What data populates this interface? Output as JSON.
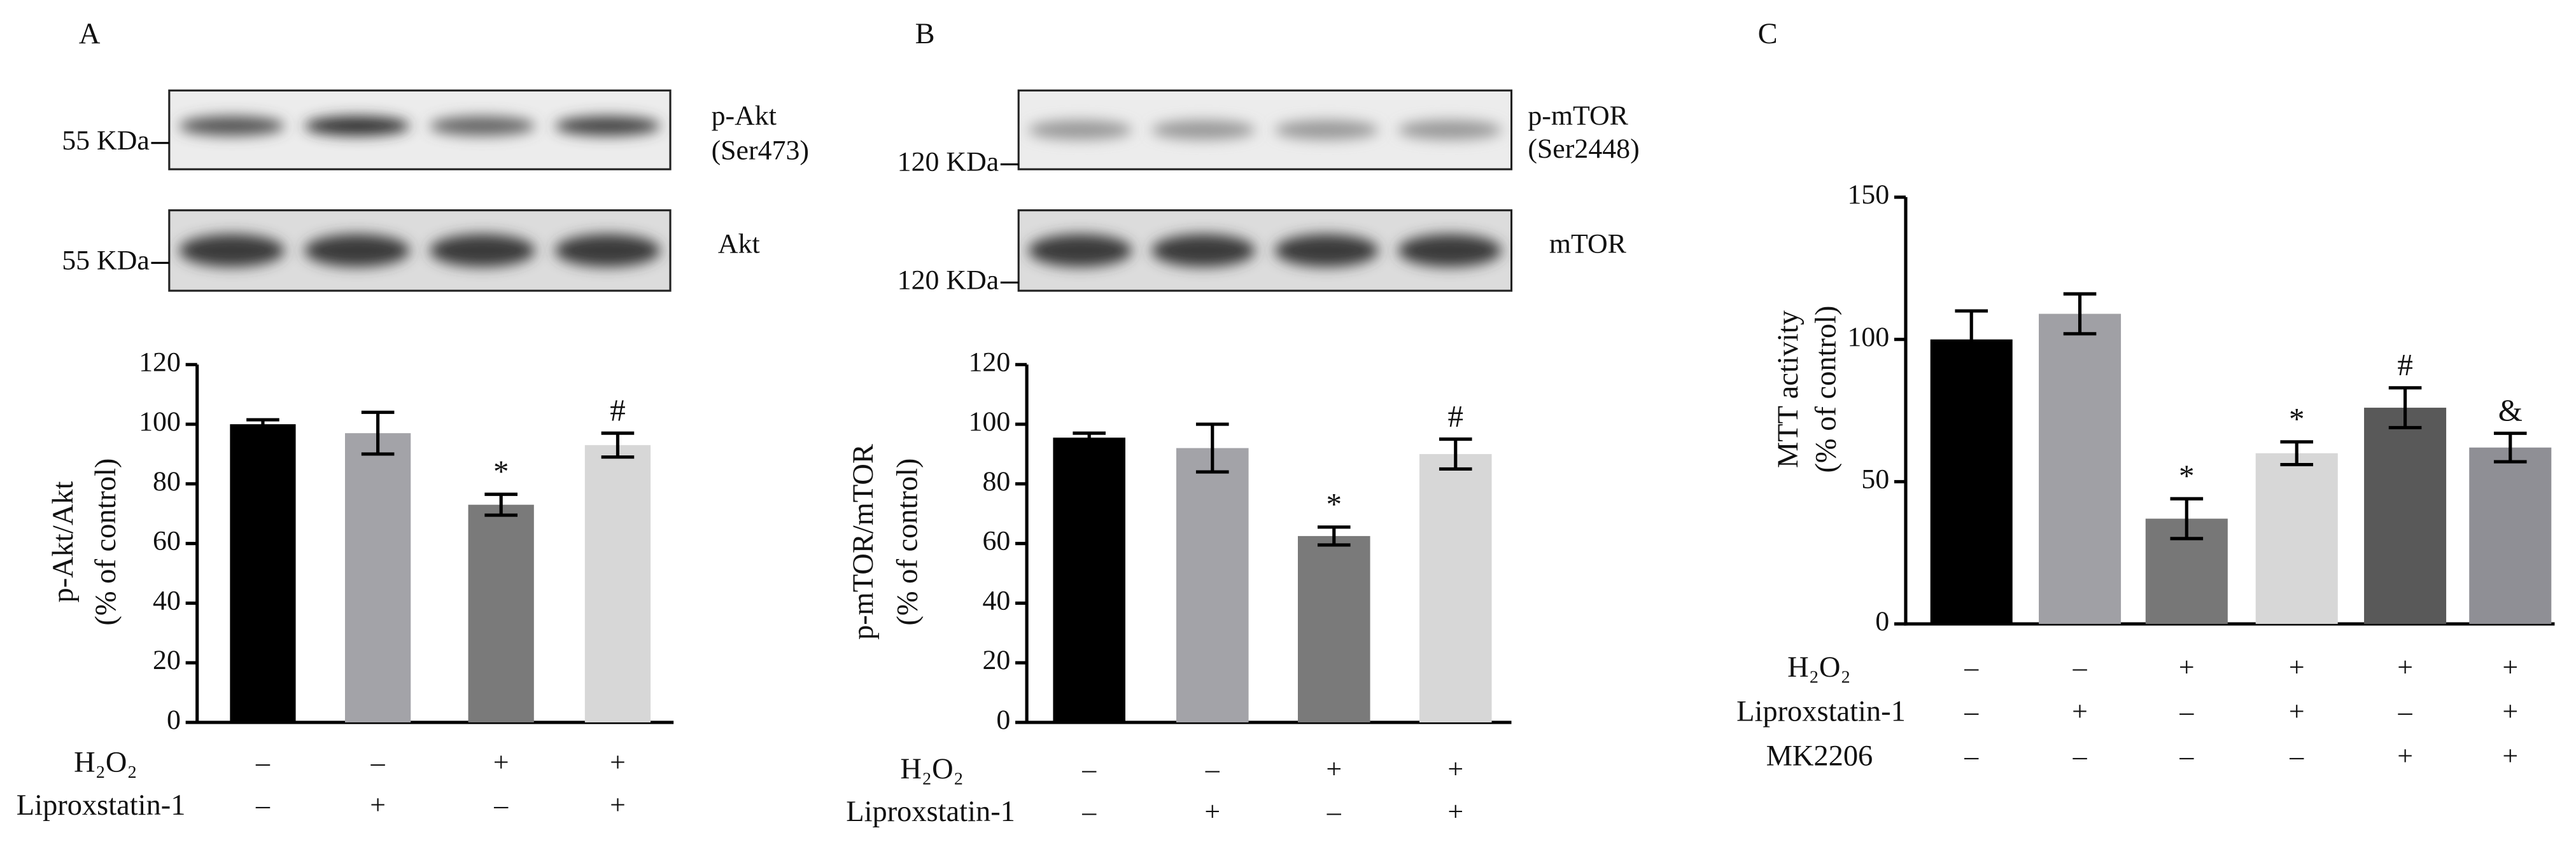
{
  "chart_data": [
    {
      "type": "bar",
      "panel_label": "A",
      "blots": [
        {
          "labels": [
            "p-Akt",
            "(Ser473)"
          ],
          "marker": "55 KDa"
        },
        {
          "labels": [
            "Akt"
          ],
          "marker": "55 KDa"
        }
      ],
      "y_label": [
        "p-Akt/Akt",
        "(% of control)"
      ],
      "values": [
        100,
        97,
        73,
        93
      ],
      "errors": [
        1.5,
        7,
        3.5,
        4
      ],
      "colors": [
        "#000000",
        "#a3a3a8",
        "#7a7a7a",
        "#d7d7d7"
      ],
      "annotations": [
        null,
        null,
        "*",
        "#"
      ],
      "ylim": [
        0,
        120
      ],
      "yticks": [
        0,
        20,
        40,
        60,
        80,
        100,
        120
      ],
      "treatments": [
        {
          "name": "H₂O₂",
          "signs": [
            "–",
            "–",
            "+",
            "+"
          ]
        },
        {
          "name": "Liproxstatin-1",
          "signs": [
            "–",
            "+",
            "–",
            "+"
          ]
        }
      ]
    },
    {
      "type": "bar",
      "panel_label": "B",
      "blots": [
        {
          "labels": [
            "p-mTOR",
            "(Ser2448)"
          ],
          "marker": "120 KDa"
        },
        {
          "labels": [
            "mTOR"
          ],
          "marker": "120 KDa"
        }
      ],
      "y_label": [
        "p-mTOR/mTOR",
        "(% of control)"
      ],
      "values": [
        95.5,
        92,
        62.5,
        90
      ],
      "errors": [
        1.5,
        8,
        3,
        5
      ],
      "colors": [
        "#000000",
        "#a3a3a8",
        "#7a7a7a",
        "#d7d7d7"
      ],
      "annotations": [
        null,
        null,
        "*",
        "#"
      ],
      "ylim": [
        0,
        120
      ],
      "yticks": [
        0,
        20,
        40,
        60,
        80,
        100,
        120
      ],
      "treatments": [
        {
          "name": "H₂O₂",
          "signs": [
            "–",
            "–",
            "+",
            "+"
          ]
        },
        {
          "name": "Liproxstatin-1",
          "signs": [
            "–",
            "+",
            "–",
            "+"
          ]
        }
      ]
    },
    {
      "type": "bar",
      "panel_label": "C",
      "y_label": [
        "MTT activity",
        "(% of control)"
      ],
      "values": [
        100,
        109,
        37,
        60,
        76,
        62
      ],
      "errors": [
        10,
        7,
        7,
        4,
        7,
        5
      ],
      "colors": [
        "#000000",
        "#a0a0a5",
        "#777777",
        "#d7d7d7",
        "#595959",
        "#8f8f95"
      ],
      "annotations": [
        null,
        null,
        "*",
        "*",
        "#",
        "&"
      ],
      "ylim": [
        0,
        150
      ],
      "yticks": [
        0,
        50,
        100,
        150
      ],
      "treatments": [
        {
          "name": "H₂O₂",
          "signs": [
            "–",
            "–",
            "+",
            "+",
            "+",
            "+"
          ]
        },
        {
          "name": "Liproxstatin-1",
          "signs": [
            "–",
            "+",
            "–",
            "+",
            "–",
            "+"
          ]
        },
        {
          "name": "MK2206",
          "signs": [
            "–",
            "–",
            "–",
            "–",
            "+",
            "+"
          ]
        }
      ]
    }
  ]
}
